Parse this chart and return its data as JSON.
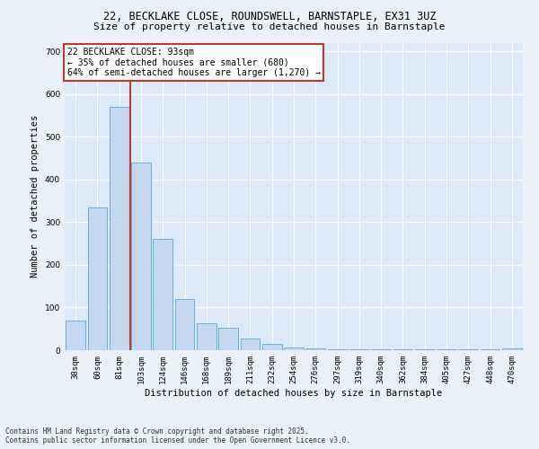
{
  "title_line1": "22, BECKLAKE CLOSE, ROUNDSWELL, BARNSTAPLE, EX31 3UZ",
  "title_line2": "Size of property relative to detached houses in Barnstaple",
  "xlabel": "Distribution of detached houses by size in Barnstaple",
  "ylabel": "Number of detached properties",
  "categories": [
    "38sqm",
    "60sqm",
    "81sqm",
    "103sqm",
    "124sqm",
    "146sqm",
    "168sqm",
    "189sqm",
    "211sqm",
    "232sqm",
    "254sqm",
    "276sqm",
    "297sqm",
    "319sqm",
    "340sqm",
    "362sqm",
    "384sqm",
    "405sqm",
    "427sqm",
    "448sqm",
    "470sqm"
  ],
  "bar_heights": [
    70,
    335,
    570,
    440,
    260,
    120,
    63,
    52,
    28,
    15,
    7,
    5,
    2,
    2,
    2,
    2,
    2,
    2,
    2,
    2,
    5
  ],
  "bar_color": "#c5d8f0",
  "bar_edge_color": "#6aaed6",
  "vline_color": "#c0392b",
  "vline_x": 2.5,
  "annotation_text": "22 BECKLAKE CLOSE: 93sqm\n← 35% of detached houses are smaller (680)\n64% of semi-detached houses are larger (1,270) →",
  "annotation_box_edge_color": "#c0392b",
  "ylim": [
    0,
    720
  ],
  "yticks": [
    0,
    100,
    200,
    300,
    400,
    500,
    600,
    700
  ],
  "plot_bg_color": "#dce9f8",
  "fig_bg_color": "#eaf1fb",
  "grid_color": "#ffffff",
  "title_fontsize": 8.5,
  "subtitle_fontsize": 8,
  "ylabel_fontsize": 7.5,
  "xlabel_fontsize": 7.5,
  "tick_fontsize": 6.5,
  "footer": "Contains HM Land Registry data © Crown copyright and database right 2025.\nContains public sector information licensed under the Open Government Licence v3.0."
}
